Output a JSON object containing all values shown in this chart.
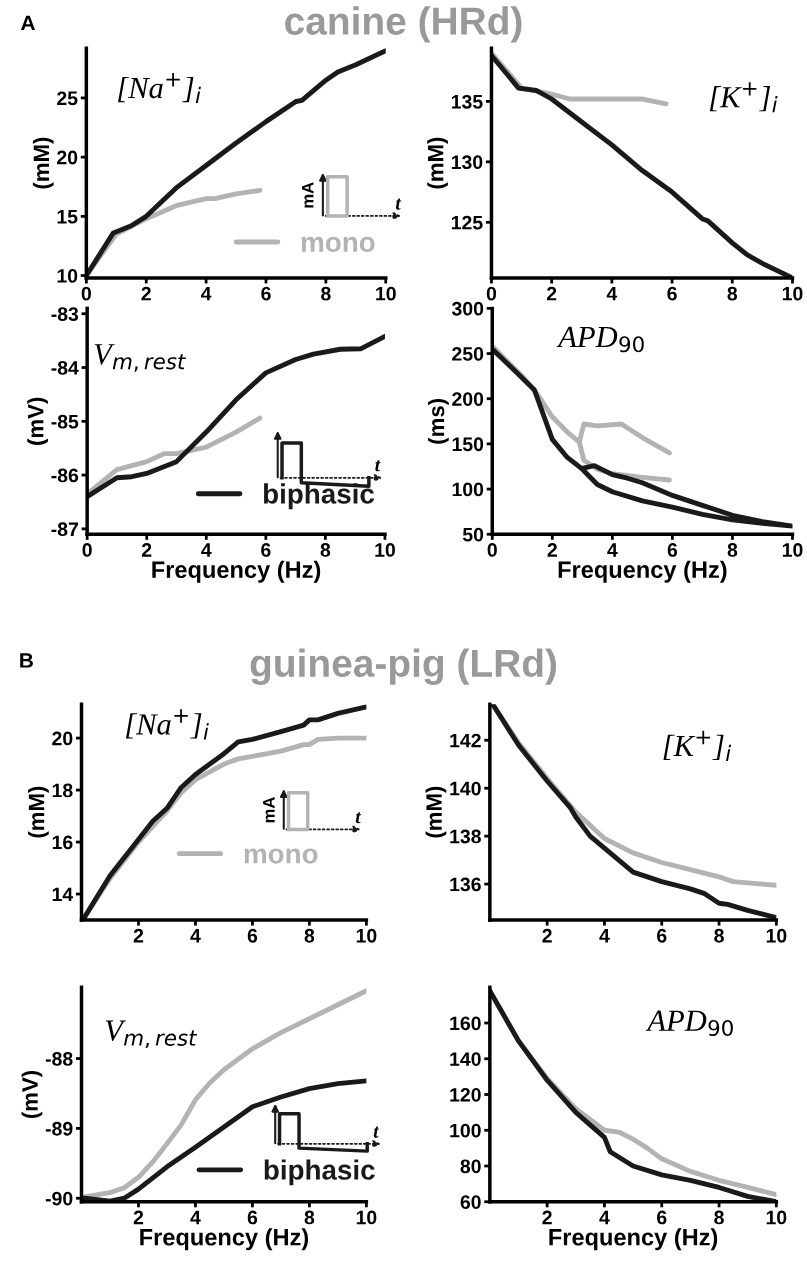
{
  "chart_data": [
    {
      "type": "line",
      "title": "canine (HRd)",
      "ylabel": "(mM)",
      "xlim": [
        0,
        10
      ],
      "xticks": [
        0,
        2,
        4,
        6,
        8,
        10
      ],
      "ylim": [
        9.8,
        29.2
      ],
      "yticks": [
        10,
        15,
        20,
        25
      ],
      "legend": "lower right",
      "annotations": [
        "A",
        "[Na$^{+}$]$_{i}$",
        "mA",
        "t"
      ],
      "series": [
        {
          "name": "mono",
          "color": "#b3b3b3",
          "x": [
            0,
            1,
            2,
            3,
            4,
            4.3,
            5,
            5.8
          ],
          "values": [
            10,
            13.5,
            14.8,
            15.9,
            16.5,
            16.5,
            16.9,
            17.2
          ]
        },
        {
          "color": "#1a1a1a",
          "x": [
            0,
            0.9,
            1.5,
            2,
            3,
            4,
            5,
            6,
            7,
            7.2,
            8,
            8.4,
            9,
            10
          ],
          "values": [
            10,
            13.6,
            14.2,
            15,
            17.4,
            19.3,
            21.2,
            23,
            24.7,
            24.8,
            26.5,
            27.2,
            27.8,
            29
          ]
        }
      ]
    },
    {
      "type": "line",
      "ylabel": "(mM)",
      "xlim": [
        0,
        10
      ],
      "xticks": [
        0,
        2,
        4,
        6,
        8,
        10
      ],
      "ylim": [
        120.4,
        139.4
      ],
      "yticks": [
        125,
        130,
        135
      ],
      "annotations": [
        "[K$^{+}$]$_{i}$"
      ],
      "series": [
        {
          "color": "#b3b3b3",
          "x": [
            0,
            1,
            2,
            2.6,
            3,
            4,
            5,
            5.8
          ],
          "values": [
            139,
            136.1,
            135.6,
            135.2,
            135.2,
            135.2,
            135.2,
            134.8
          ]
        },
        {
          "color": "#1a1a1a",
          "x": [
            0,
            0.9,
            1.5,
            2,
            3,
            4,
            5,
            6,
            7,
            7.2,
            8,
            8.5,
            9,
            10
          ],
          "values": [
            138.8,
            136.1,
            135.9,
            135.2,
            133.3,
            131.4,
            129.3,
            127.5,
            125.3,
            125.1,
            123.3,
            122.3,
            121.6,
            120.4
          ]
        }
      ]
    },
    {
      "type": "line",
      "xlabel": "Frequency (Hz)",
      "ylabel": "(mV)",
      "xlim": [
        0,
        10
      ],
      "xticks": [
        0,
        2,
        4,
        6,
        8,
        10
      ],
      "ylim": [
        -87.1,
        -82.9
      ],
      "yticks": [
        -87,
        -86,
        -85,
        -84,
        -83
      ],
      "legend": "lower right",
      "annotations": [
        "V$_{m,rest}$",
        "t"
      ],
      "series": [
        {
          "color": "#b3b3b3",
          "x": [
            0,
            1,
            2,
            2.6,
            3,
            4,
            5,
            5.8
          ],
          "values": [
            -86.35,
            -85.9,
            -85.75,
            -85.6,
            -85.6,
            -85.48,
            -85.2,
            -84.94
          ]
        },
        {
          "name": "biphasic",
          "color": "#1a1a1a",
          "x": [
            0,
            1,
            1.5,
            2,
            3,
            4,
            5,
            6,
            7,
            7.6,
            8.5,
            9.2,
            10
          ],
          "values": [
            -86.4,
            -86.05,
            -86.03,
            -85.97,
            -85.75,
            -85.2,
            -84.6,
            -84.1,
            -83.85,
            -83.75,
            -83.66,
            -83.65,
            -83.42
          ]
        }
      ]
    },
    {
      "type": "line",
      "xlabel": "Frequency (Hz)",
      "ylabel": "(ms)",
      "xlim": [
        0,
        10
      ],
      "xticks": [
        0,
        2,
        4,
        6,
        8,
        10
      ],
      "ylim": [
        50,
        300
      ],
      "yticks": [
        50,
        100,
        150,
        200,
        250,
        300
      ],
      "annotations": [
        "APD$_{90}$"
      ],
      "series": [
        {
          "color": "#b3b3b3",
          "x": [
            0,
            1,
            1.5,
            2,
            2.5,
            2.9,
            3.05,
            3.5,
            4.3,
            5,
            5.9,
            null,
            2.9,
            3.05,
            3.5,
            4,
            5,
            5.9
          ],
          "values": [
            258,
            225,
            205,
            180,
            163,
            152,
            172,
            170,
            172,
            157,
            140,
            null,
            152,
            132,
            122,
            117,
            113,
            110
          ]
        },
        {
          "color": "#1a1a1a",
          "x": [
            0,
            1.4,
            2,
            2.5,
            3,
            3.5,
            4,
            5,
            6,
            7,
            8,
            9,
            10,
            9,
            8,
            7,
            6,
            5,
            4.5,
            4,
            3.4,
            3
          ],
          "values": [
            255,
            210,
            155,
            135,
            122,
            105,
            97,
            87,
            80,
            72,
            66,
            62,
            59,
            64,
            71,
            82,
            93,
            107,
            112,
            116,
            126,
            123
          ]
        }
      ]
    },
    {
      "type": "line",
      "title": "guinea-pig (LRd)",
      "ylabel": "(mM)",
      "xlim": [
        0,
        10
      ],
      "xticks": [
        2,
        4,
        6,
        8,
        10
      ],
      "ylim": [
        13,
        21.3
      ],
      "yticks": [
        14,
        16,
        18,
        20
      ],
      "legend": "lower right",
      "annotations": [
        "B",
        "[Na$^{+}$]$_{i}$",
        "mA",
        "t"
      ],
      "series": [
        {
          "name": "mono",
          "color": "#b3b3b3",
          "x": [
            0.1,
            1,
            2,
            3,
            3.5,
            4,
            5,
            5.5,
            6,
            7,
            7.8,
            8,
            8.3,
            9,
            10
          ],
          "values": [
            13.1,
            14.6,
            16,
            17.2,
            17.9,
            18.4,
            19,
            19.2,
            19.3,
            19.5,
            19.75,
            19.75,
            19.95,
            20,
            20
          ]
        },
        {
          "color": "#1a1a1a",
          "x": [
            0.1,
            1,
            2,
            2.5,
            3,
            3.5,
            4,
            5,
            5.5,
            6,
            7,
            7.8,
            8,
            8.3,
            9,
            10
          ],
          "values": [
            13.1,
            14.7,
            16.1,
            16.8,
            17.3,
            18.1,
            18.6,
            19.4,
            19.85,
            19.95,
            20.25,
            20.5,
            20.7,
            20.7,
            20.95,
            21.2
          ]
        }
      ]
    },
    {
      "type": "line",
      "ylabel": "(mM)",
      "xlim": [
        0,
        10
      ],
      "xticks": [
        2,
        4,
        6,
        8,
        10
      ],
      "ylim": [
        134.5,
        143.5
      ],
      "yticks": [
        136,
        138,
        140,
        142
      ],
      "annotations": [
        "[K$^{+}$]$_{i}$"
      ],
      "series": [
        {
          "color": "#b3b3b3",
          "x": [
            0.1,
            1,
            2,
            3,
            4,
            5,
            6,
            7,
            8,
            8.5,
            9,
            10
          ],
          "values": [
            143.5,
            141.9,
            140.4,
            139,
            137.9,
            137.3,
            136.9,
            136.6,
            136.3,
            136.1,
            136.05,
            135.95
          ]
        },
        {
          "color": "#1a1a1a",
          "x": [
            0.1,
            1,
            2,
            2.8,
            3,
            3.5,
            4,
            5,
            5.5,
            6,
            7,
            7.5,
            8,
            8.3,
            9,
            10
          ],
          "values": [
            143.5,
            141.8,
            140.3,
            139.2,
            138.8,
            138,
            137.5,
            136.5,
            136.3,
            136.1,
            135.8,
            135.6,
            135.2,
            135.15,
            134.9,
            134.6
          ]
        }
      ]
    },
    {
      "type": "line",
      "xlabel": "Frequency (Hz)",
      "ylabel": "(mV)",
      "xlim": [
        0,
        10
      ],
      "xticks": [
        2,
        4,
        6,
        8,
        10
      ],
      "ylim": [
        -90.05,
        -86.98
      ],
      "yticks": [
        -90,
        -89,
        -88
      ],
      "legend": "lower right",
      "annotations": [
        "V$_{m,rest}$",
        "t"
      ],
      "series": [
        {
          "color": "#b3b3b3",
          "x": [
            0.1,
            1,
            1.5,
            2,
            2.5,
            3,
            3.5,
            4,
            4.5,
            5,
            6,
            7,
            8,
            9,
            10
          ],
          "values": [
            -89.98,
            -89.92,
            -89.85,
            -89.7,
            -89.48,
            -89.22,
            -88.95,
            -88.59,
            -88.35,
            -88.16,
            -87.86,
            -87.63,
            -87.43,
            -87.23,
            -87.03
          ]
        },
        {
          "name": "biphasic",
          "color": "#1a1a1a",
          "x": [
            0.1,
            1,
            1.5,
            2,
            3,
            4,
            5,
            6,
            7,
            8,
            9,
            10
          ],
          "values": [
            -90,
            -90.04,
            -90,
            -89.87,
            -89.55,
            -89.27,
            -88.98,
            -88.69,
            -88.55,
            -88.43,
            -88.36,
            -88.32
          ]
        }
      ]
    },
    {
      "type": "line",
      "xlabel": "Frequency (Hz)",
      "xlim": [
        0,
        10
      ],
      "xticks": [
        2,
        4,
        6,
        8,
        10
      ],
      "ylim": [
        60,
        180
      ],
      "yticks": [
        60,
        80,
        100,
        120,
        140,
        160
      ],
      "annotations": [
        "APD$_{90}$"
      ],
      "series": [
        {
          "color": "#b3b3b3",
          "x": [
            0,
            1,
            2,
            3,
            4,
            4.5,
            5,
            5.5,
            6,
            7,
            8,
            9,
            10
          ],
          "values": [
            178,
            150,
            129,
            112,
            100,
            99,
            95,
            90,
            84,
            77,
            72,
            68,
            64
          ]
        },
        {
          "color": "#1a1a1a",
          "x": [
            0,
            1,
            2,
            3,
            3.5,
            4,
            4.2,
            5,
            6,
            7,
            8,
            9,
            10
          ],
          "values": [
            178,
            150,
            128,
            110,
            103,
            96,
            88,
            80,
            75,
            72,
            68,
            63,
            60
          ]
        }
      ]
    }
  ]
}
